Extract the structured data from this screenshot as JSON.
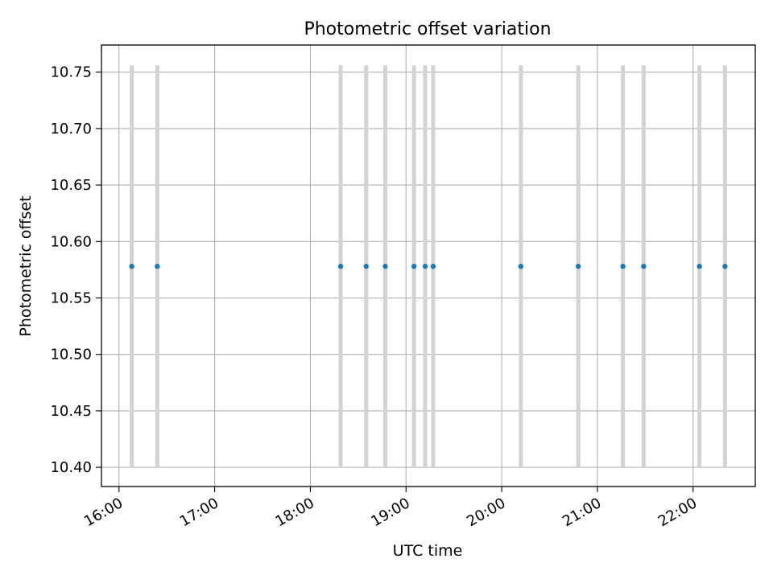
{
  "chart_data": {
    "type": "scatter",
    "title": "Photometric offset variation",
    "xlabel": "UTC time",
    "ylabel": "Photometric offset",
    "x_ticks": [
      "16:00",
      "17:00",
      "18:00",
      "19:00",
      "20:00",
      "21:00",
      "22:00"
    ],
    "y_ticks": [
      "10.40",
      "10.45",
      "10.50",
      "10.55",
      "10.60",
      "10.65",
      "10.70",
      "10.75"
    ],
    "xlim": [
      "15:49",
      "22:39"
    ],
    "ylim": [
      10.383,
      10.774
    ],
    "grid": true,
    "points": [
      {
        "time": "16:08",
        "y": 10.578,
        "err_low": 10.4,
        "err_high": 10.756
      },
      {
        "time": "16:24",
        "y": 10.578,
        "err_low": 10.4,
        "err_high": 10.756
      },
      {
        "time": "18:19",
        "y": 10.578,
        "err_low": 10.4,
        "err_high": 10.756
      },
      {
        "time": "18:35",
        "y": 10.578,
        "err_low": 10.4,
        "err_high": 10.756
      },
      {
        "time": "18:47",
        "y": 10.578,
        "err_low": 10.4,
        "err_high": 10.756
      },
      {
        "time": "19:05",
        "y": 10.578,
        "err_low": 10.4,
        "err_high": 10.756
      },
      {
        "time": "19:12",
        "y": 10.578,
        "err_low": 10.4,
        "err_high": 10.756
      },
      {
        "time": "19:17",
        "y": 10.578,
        "err_low": 10.4,
        "err_high": 10.756
      },
      {
        "time": "20:12",
        "y": 10.578,
        "err_low": 10.4,
        "err_high": 10.756
      },
      {
        "time": "20:48",
        "y": 10.578,
        "err_low": 10.4,
        "err_high": 10.756
      },
      {
        "time": "21:16",
        "y": 10.578,
        "err_low": 10.4,
        "err_high": 10.756
      },
      {
        "time": "21:29",
        "y": 10.578,
        "err_low": 10.4,
        "err_high": 10.756
      },
      {
        "time": "22:04",
        "y": 10.578,
        "err_low": 10.4,
        "err_high": 10.756
      },
      {
        "time": "22:20",
        "y": 10.578,
        "err_low": 10.4,
        "err_high": 10.756
      }
    ],
    "colors": {
      "marker": "#1f77b4",
      "errorbar": "#d3d3d3",
      "grid": "#b0b0b0",
      "axes": "#000000"
    }
  }
}
